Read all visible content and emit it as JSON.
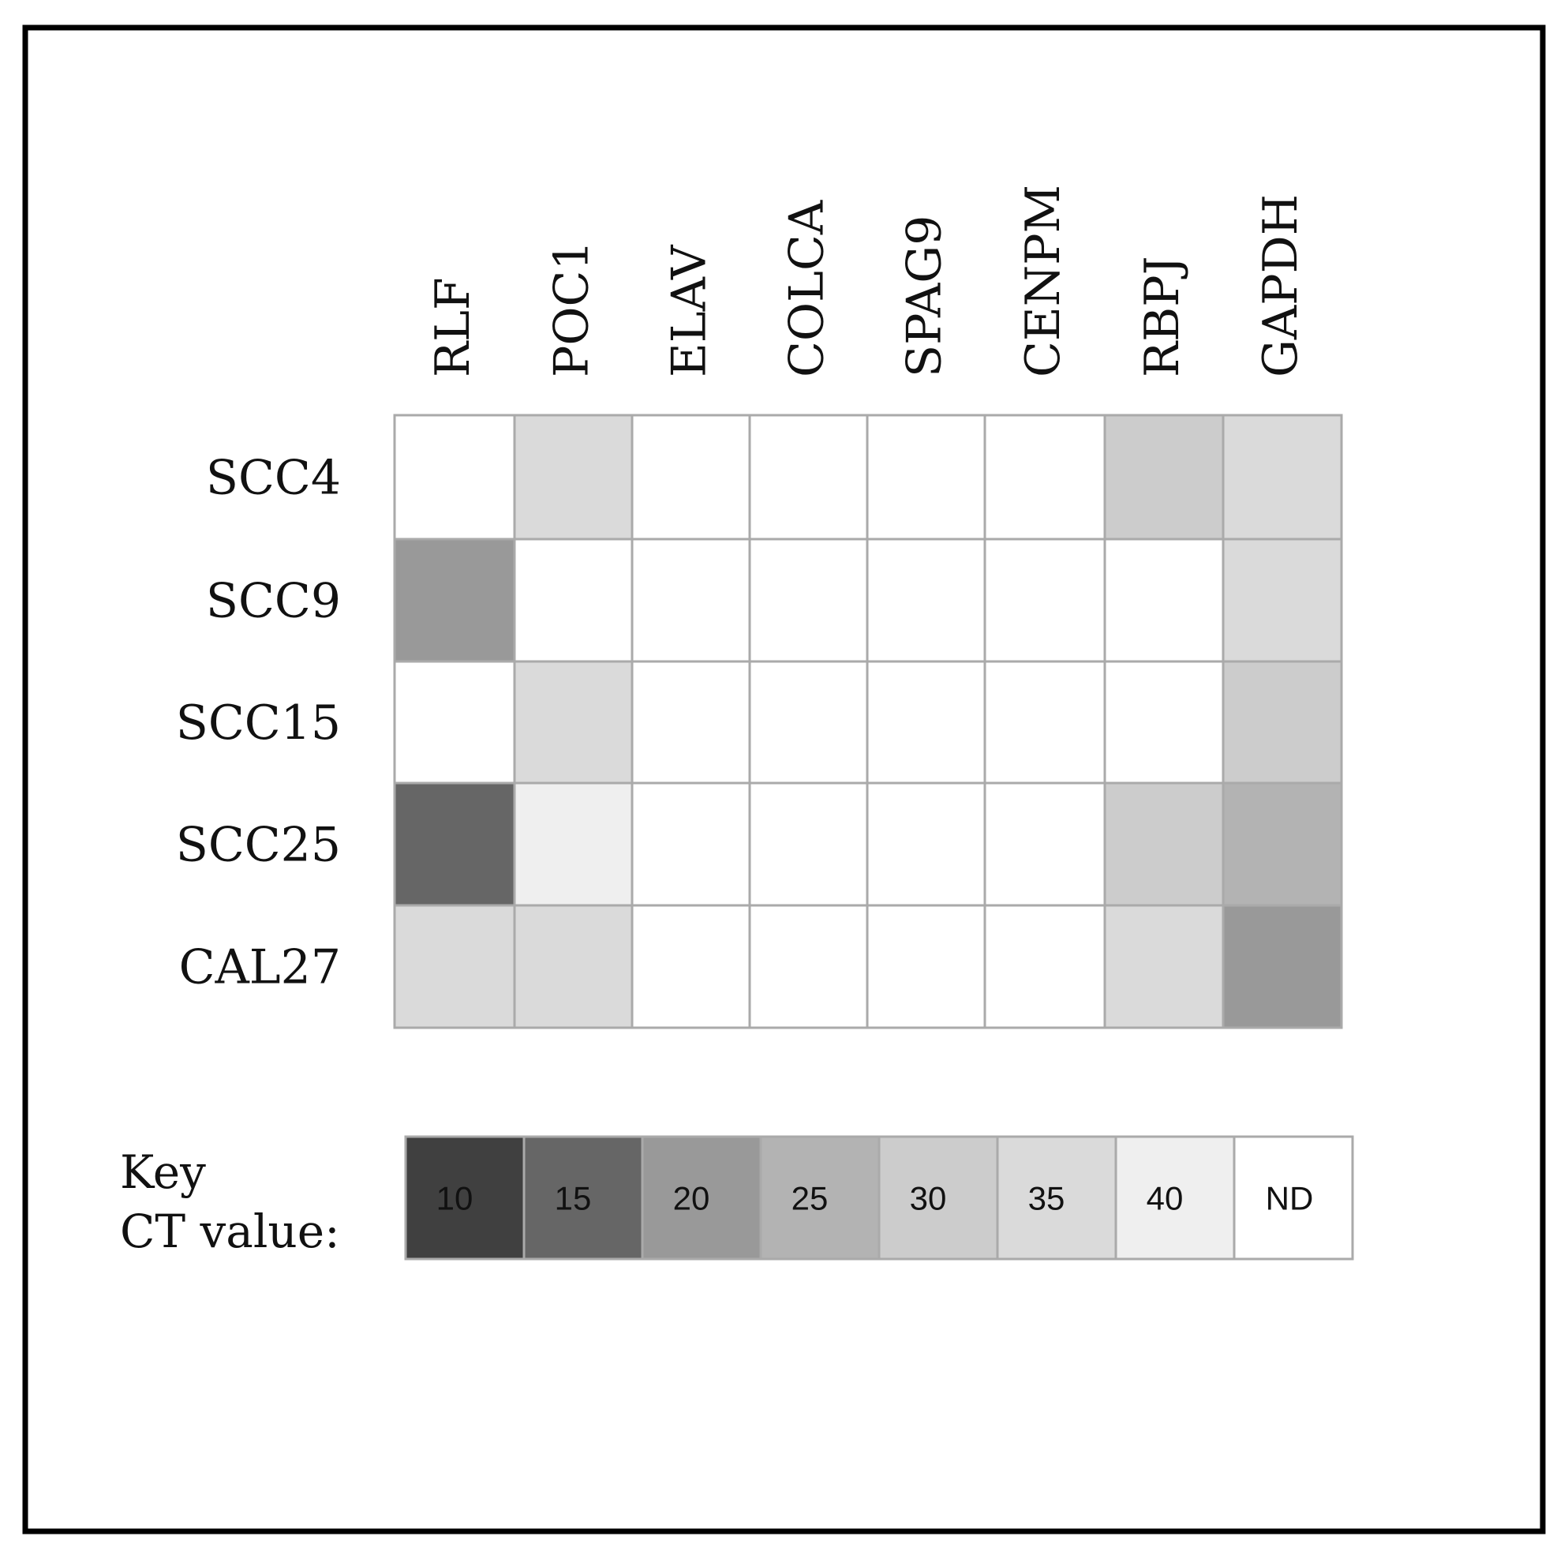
{
  "chart_data": {
    "type": "heatmap",
    "columns": [
      "RLF",
      "POC1",
      "ELAV",
      "COLCA",
      "SPAG9",
      "CENPM",
      "RBPJ",
      "GAPDH"
    ],
    "rows": [
      "SCC4",
      "SCC9",
      "SCC15",
      "SCC25",
      "CAL27"
    ],
    "values": [
      [
        "ND",
        35,
        "ND",
        "ND",
        "ND",
        "ND",
        30,
        35
      ],
      [
        20,
        "ND",
        "ND",
        "ND",
        "ND",
        "ND",
        "ND",
        35
      ],
      [
        "ND",
        35,
        "ND",
        "ND",
        "ND",
        "ND",
        "ND",
        30
      ],
      [
        15,
        40,
        "ND",
        "ND",
        "ND",
        "ND",
        30,
        25
      ],
      [
        35,
        35,
        "ND",
        "ND",
        "ND",
        "ND",
        35,
        20
      ]
    ],
    "legend": {
      "title_line1": "Key",
      "title_line2": "CT value:",
      "entries": [
        {
          "label": "10",
          "color": "#404040"
        },
        {
          "label": "15",
          "color": "#666666"
        },
        {
          "label": "20",
          "color": "#999999"
        },
        {
          "label": "25",
          "color": "#b3b3b3"
        },
        {
          "label": "30",
          "color": "#cccccc"
        },
        {
          "label": "35",
          "color": "#dadada"
        },
        {
          "label": "40",
          "color": "#efefef"
        },
        {
          "label": "ND",
          "color": "#ffffff"
        }
      ]
    },
    "grid_color": "#aaaaaa",
    "frame_color": "#000000"
  }
}
